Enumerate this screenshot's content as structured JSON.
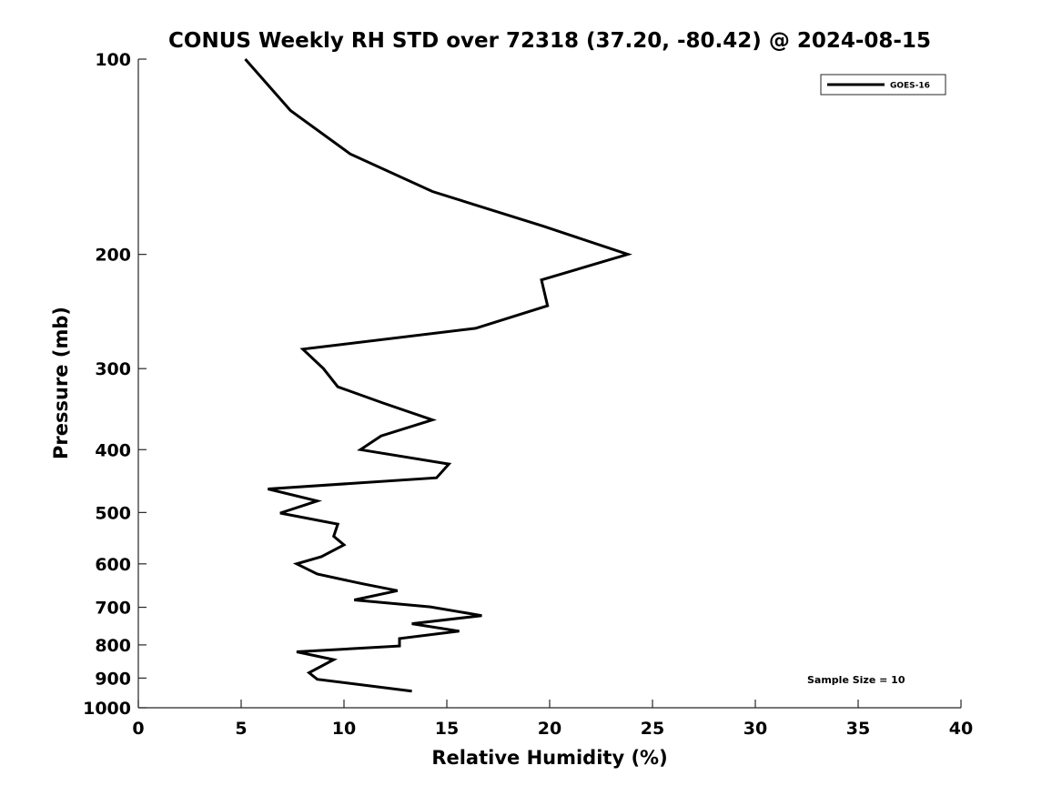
{
  "chart_data": {
    "type": "line",
    "title": "CONUS Weekly RH STD over 72318 (37.20, -80.42) @ 2024-08-15",
    "xlabel": "Relative Humidity (%)",
    "ylabel": "Pressure (mb)",
    "xlim": [
      0,
      40
    ],
    "ylim": [
      100,
      1000
    ],
    "yscale": "log",
    "y_reversed": true,
    "grid": false,
    "x_ticks": [
      0,
      5,
      10,
      15,
      20,
      25,
      30,
      35,
      40
    ],
    "x_tick_labels": [
      "0",
      "5",
      "10",
      "15",
      "20",
      "25",
      "30",
      "35",
      "40"
    ],
    "y_ticks": [
      100,
      200,
      300,
      400,
      500,
      600,
      700,
      800,
      900,
      1000
    ],
    "y_tick_labels": [
      "100",
      "200",
      "300",
      "400",
      "500",
      "600",
      "700",
      "800",
      "900",
      "1000"
    ],
    "legend": {
      "placement": "top-right",
      "entries": [
        "GOES-16"
      ]
    },
    "annotation": "Sample Size = 10",
    "series": [
      {
        "name": "GOES-16",
        "color": "#000000",
        "x": [
          5.2,
          7.4,
          10.3,
          14.3,
          19.7,
          23.8,
          19.6,
          19.9,
          16.4,
          8.0,
          9.0,
          9.7,
          11.9,
          14.3,
          11.8,
          10.8,
          15.1,
          14.5,
          6.3,
          8.7,
          6.9,
          9.7,
          9.5,
          10.0,
          8.9,
          7.7,
          8.7,
          10.9,
          12.6,
          10.5,
          14.2,
          16.7,
          13.3,
          15.6,
          12.7,
          12.7,
          7.7,
          9.5,
          8.3,
          8.7,
          13.3
        ],
        "y": [
          100,
          120,
          140,
          160,
          181,
          200,
          219,
          240,
          260,
          280,
          300,
          320,
          339,
          360,
          381,
          400,
          421,
          442,
          460,
          480,
          501,
          521,
          544,
          561,
          585,
          600,
          622,
          644,
          660,
          682,
          699,
          721,
          742,
          762,
          782,
          803,
          820,
          843,
          883,
          904,
          943
        ]
      }
    ]
  }
}
